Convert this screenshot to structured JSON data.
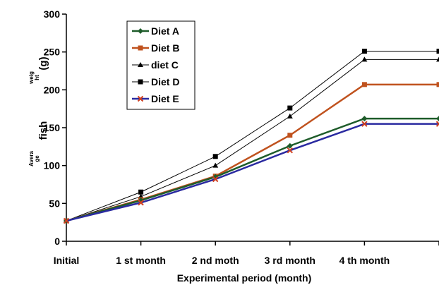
{
  "chart_data": {
    "type": "line",
    "categories": [
      "Initial",
      "1 st month",
      "2 nd moth",
      "3 rd month",
      "4 th month",
      ""
    ],
    "xlabel": "Experimental period (month)",
    "ylabel_parts": {
      "part1": "Avera",
      "part2": "ge",
      "part3": "fish",
      "part4": "weig",
      "part5": "ht",
      "part6": "(g)"
    },
    "ylim": [
      0,
      300
    ],
    "yticks": [
      0,
      50,
      100,
      150,
      200,
      250,
      300
    ],
    "legend_position": "top-left",
    "grid": false,
    "series": [
      {
        "name": "Diet A",
        "color": "#1e5c2a",
        "marker": "diamond",
        "values": [
          27,
          54,
          85,
          126,
          162,
          162
        ]
      },
      {
        "name": "Diet B",
        "color": "#c0521e",
        "marker": "square",
        "values": [
          27,
          55,
          86,
          140,
          207,
          207
        ]
      },
      {
        "name": "diet C",
        "color": "#000000",
        "marker": "triangle",
        "values": [
          27,
          59,
          100,
          165,
          240,
          240
        ]
      },
      {
        "name": "Diet D",
        "color": "#000000",
        "marker": "square",
        "values": [
          27,
          65,
          112,
          176,
          251,
          251
        ]
      },
      {
        "name": "Diet E",
        "color": "#2a2aa0",
        "marker": "x",
        "values": [
          27,
          51,
          82,
          120,
          155,
          155
        ]
      }
    ]
  }
}
